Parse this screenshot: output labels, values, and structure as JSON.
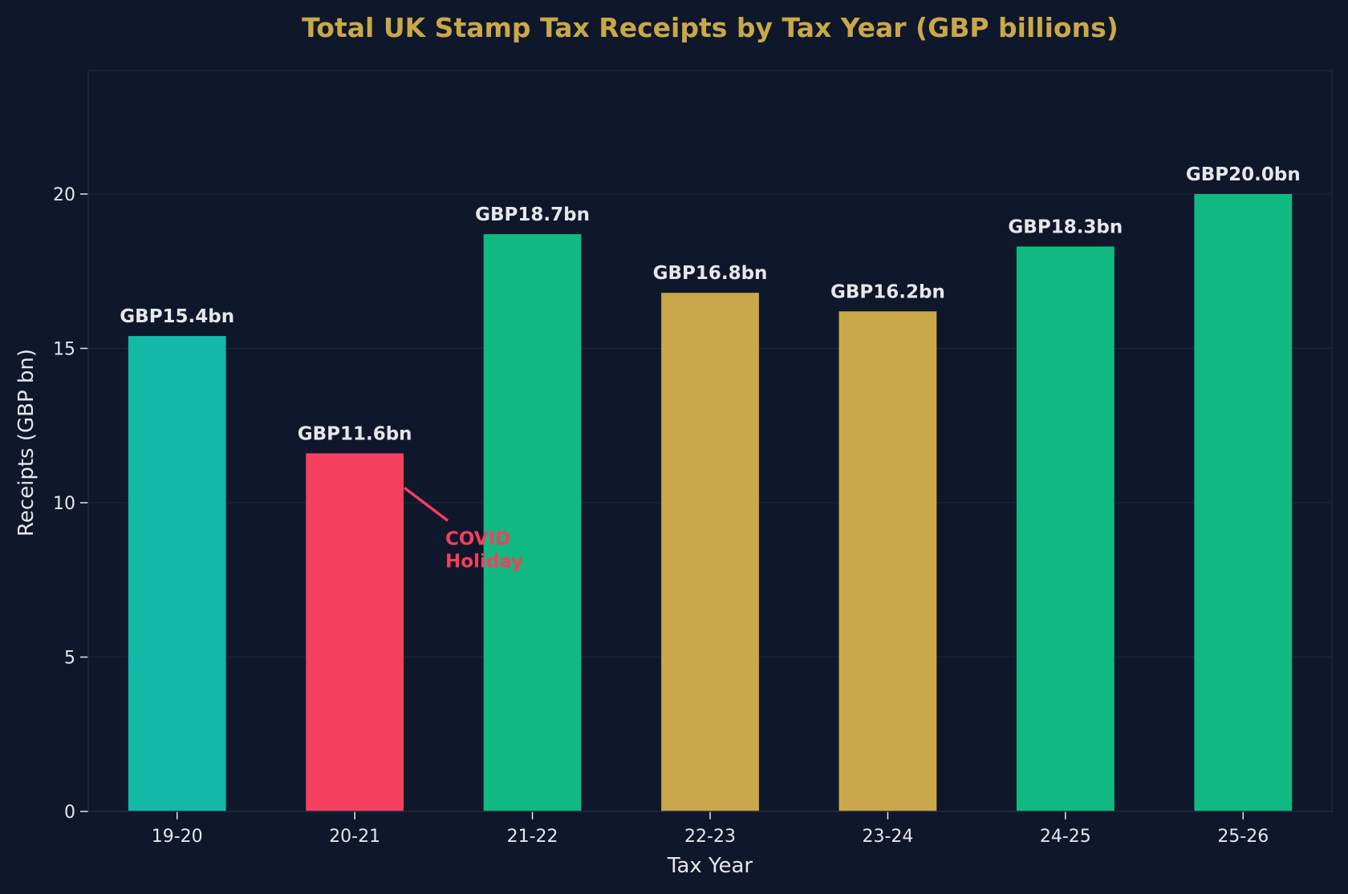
{
  "chart_data": {
    "type": "bar",
    "title": "Total UK Stamp Tax Receipts by Tax Year (GBP billions)",
    "xlabel": "Tax Year",
    "ylabel": "Receipts (GBP bn)",
    "categories": [
      "19-20",
      "20-21",
      "21-22",
      "22-23",
      "23-24",
      "24-25",
      "25-26"
    ],
    "values": [
      15.4,
      11.6,
      18.7,
      16.8,
      16.2,
      18.3,
      20.0
    ],
    "value_labels": [
      "GBP15.4bn",
      "GBP11.6bn",
      "GBP18.7bn",
      "GBP16.8bn",
      "GBP16.2bn",
      "GBP18.3bn",
      "GBP20.0bn"
    ],
    "colors": [
      "#14b8a6",
      "#f43f5e",
      "#10b981",
      "#c9a84a",
      "#c9a84a",
      "#10b981",
      "#10b981"
    ],
    "ylim": [
      0,
      24
    ],
    "yticks": [
      0,
      5,
      10,
      15,
      20
    ],
    "grid": true,
    "annotation": {
      "text_lines": [
        "COVID",
        "Holiday"
      ],
      "category": "20-21",
      "color": "#f43f5e"
    }
  }
}
